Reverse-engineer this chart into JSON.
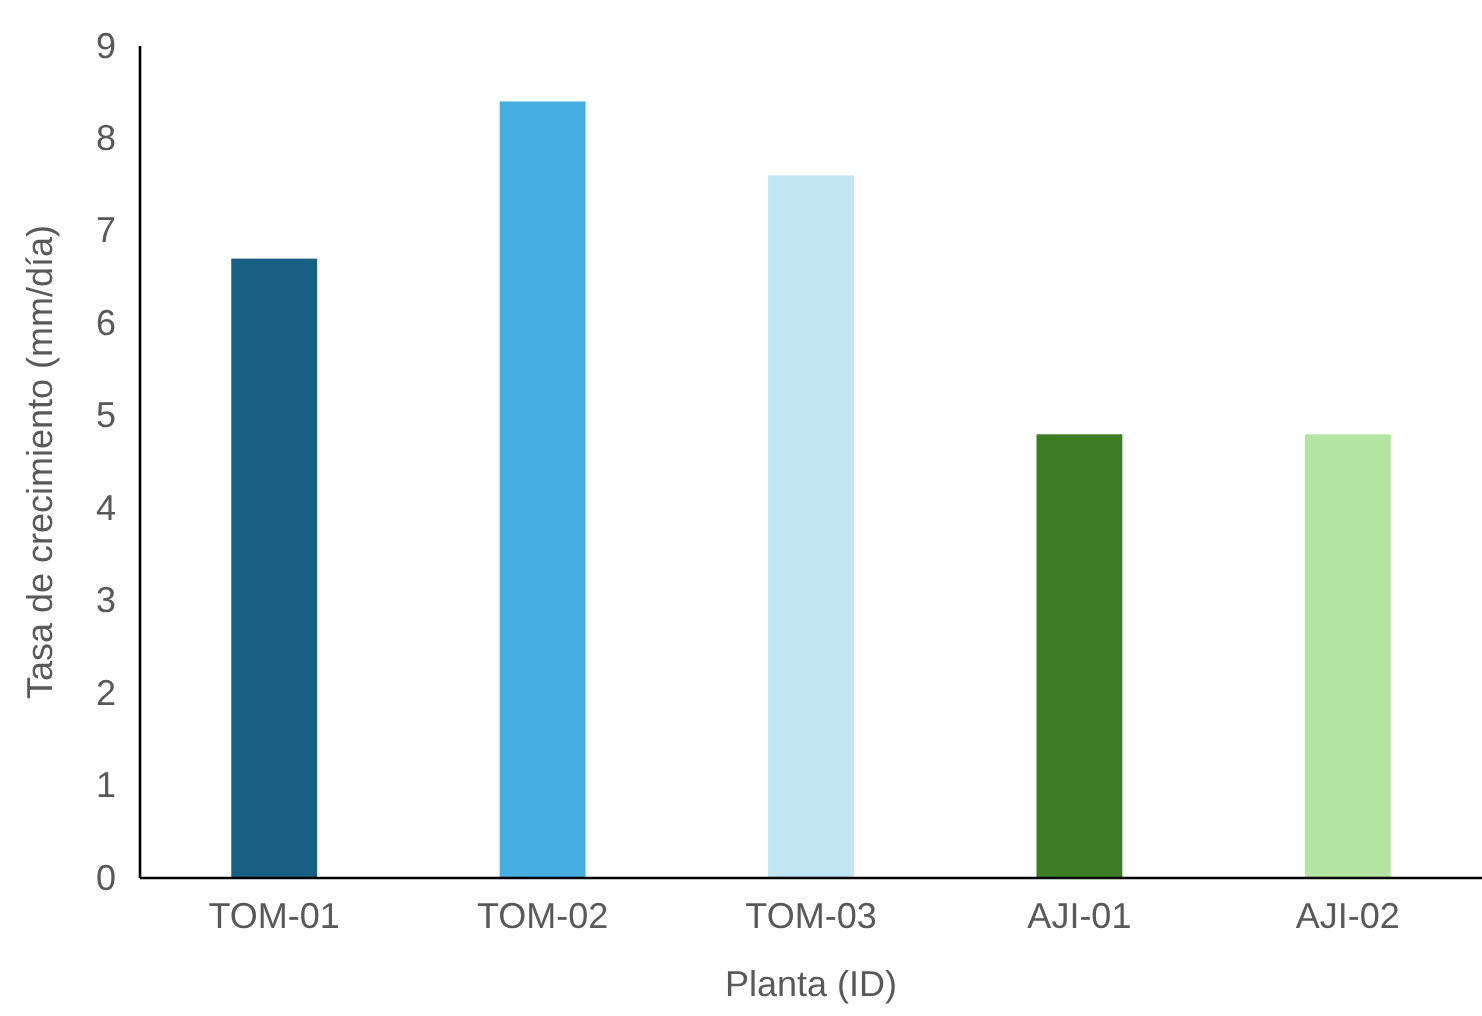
{
  "chart_data": {
    "type": "bar",
    "xlabel": "Planta (ID)",
    "ylabel": "Tasa de crecimiento (mm/día)",
    "categories": [
      "TOM-01",
      "TOM-02",
      "TOM-03",
      "AJI-01",
      "AJI-02"
    ],
    "values": [
      6.7,
      8.4,
      7.6,
      4.8,
      4.8
    ],
    "colors": [
      "#175f83",
      "#46afe0",
      "#c2e5f4",
      "#3c7d23",
      "#b5e5a2"
    ],
    "ylim": [
      0,
      9
    ],
    "yticks": [
      0,
      1,
      2,
      3,
      4,
      5,
      6,
      7,
      8,
      9
    ],
    "grid": false
  }
}
